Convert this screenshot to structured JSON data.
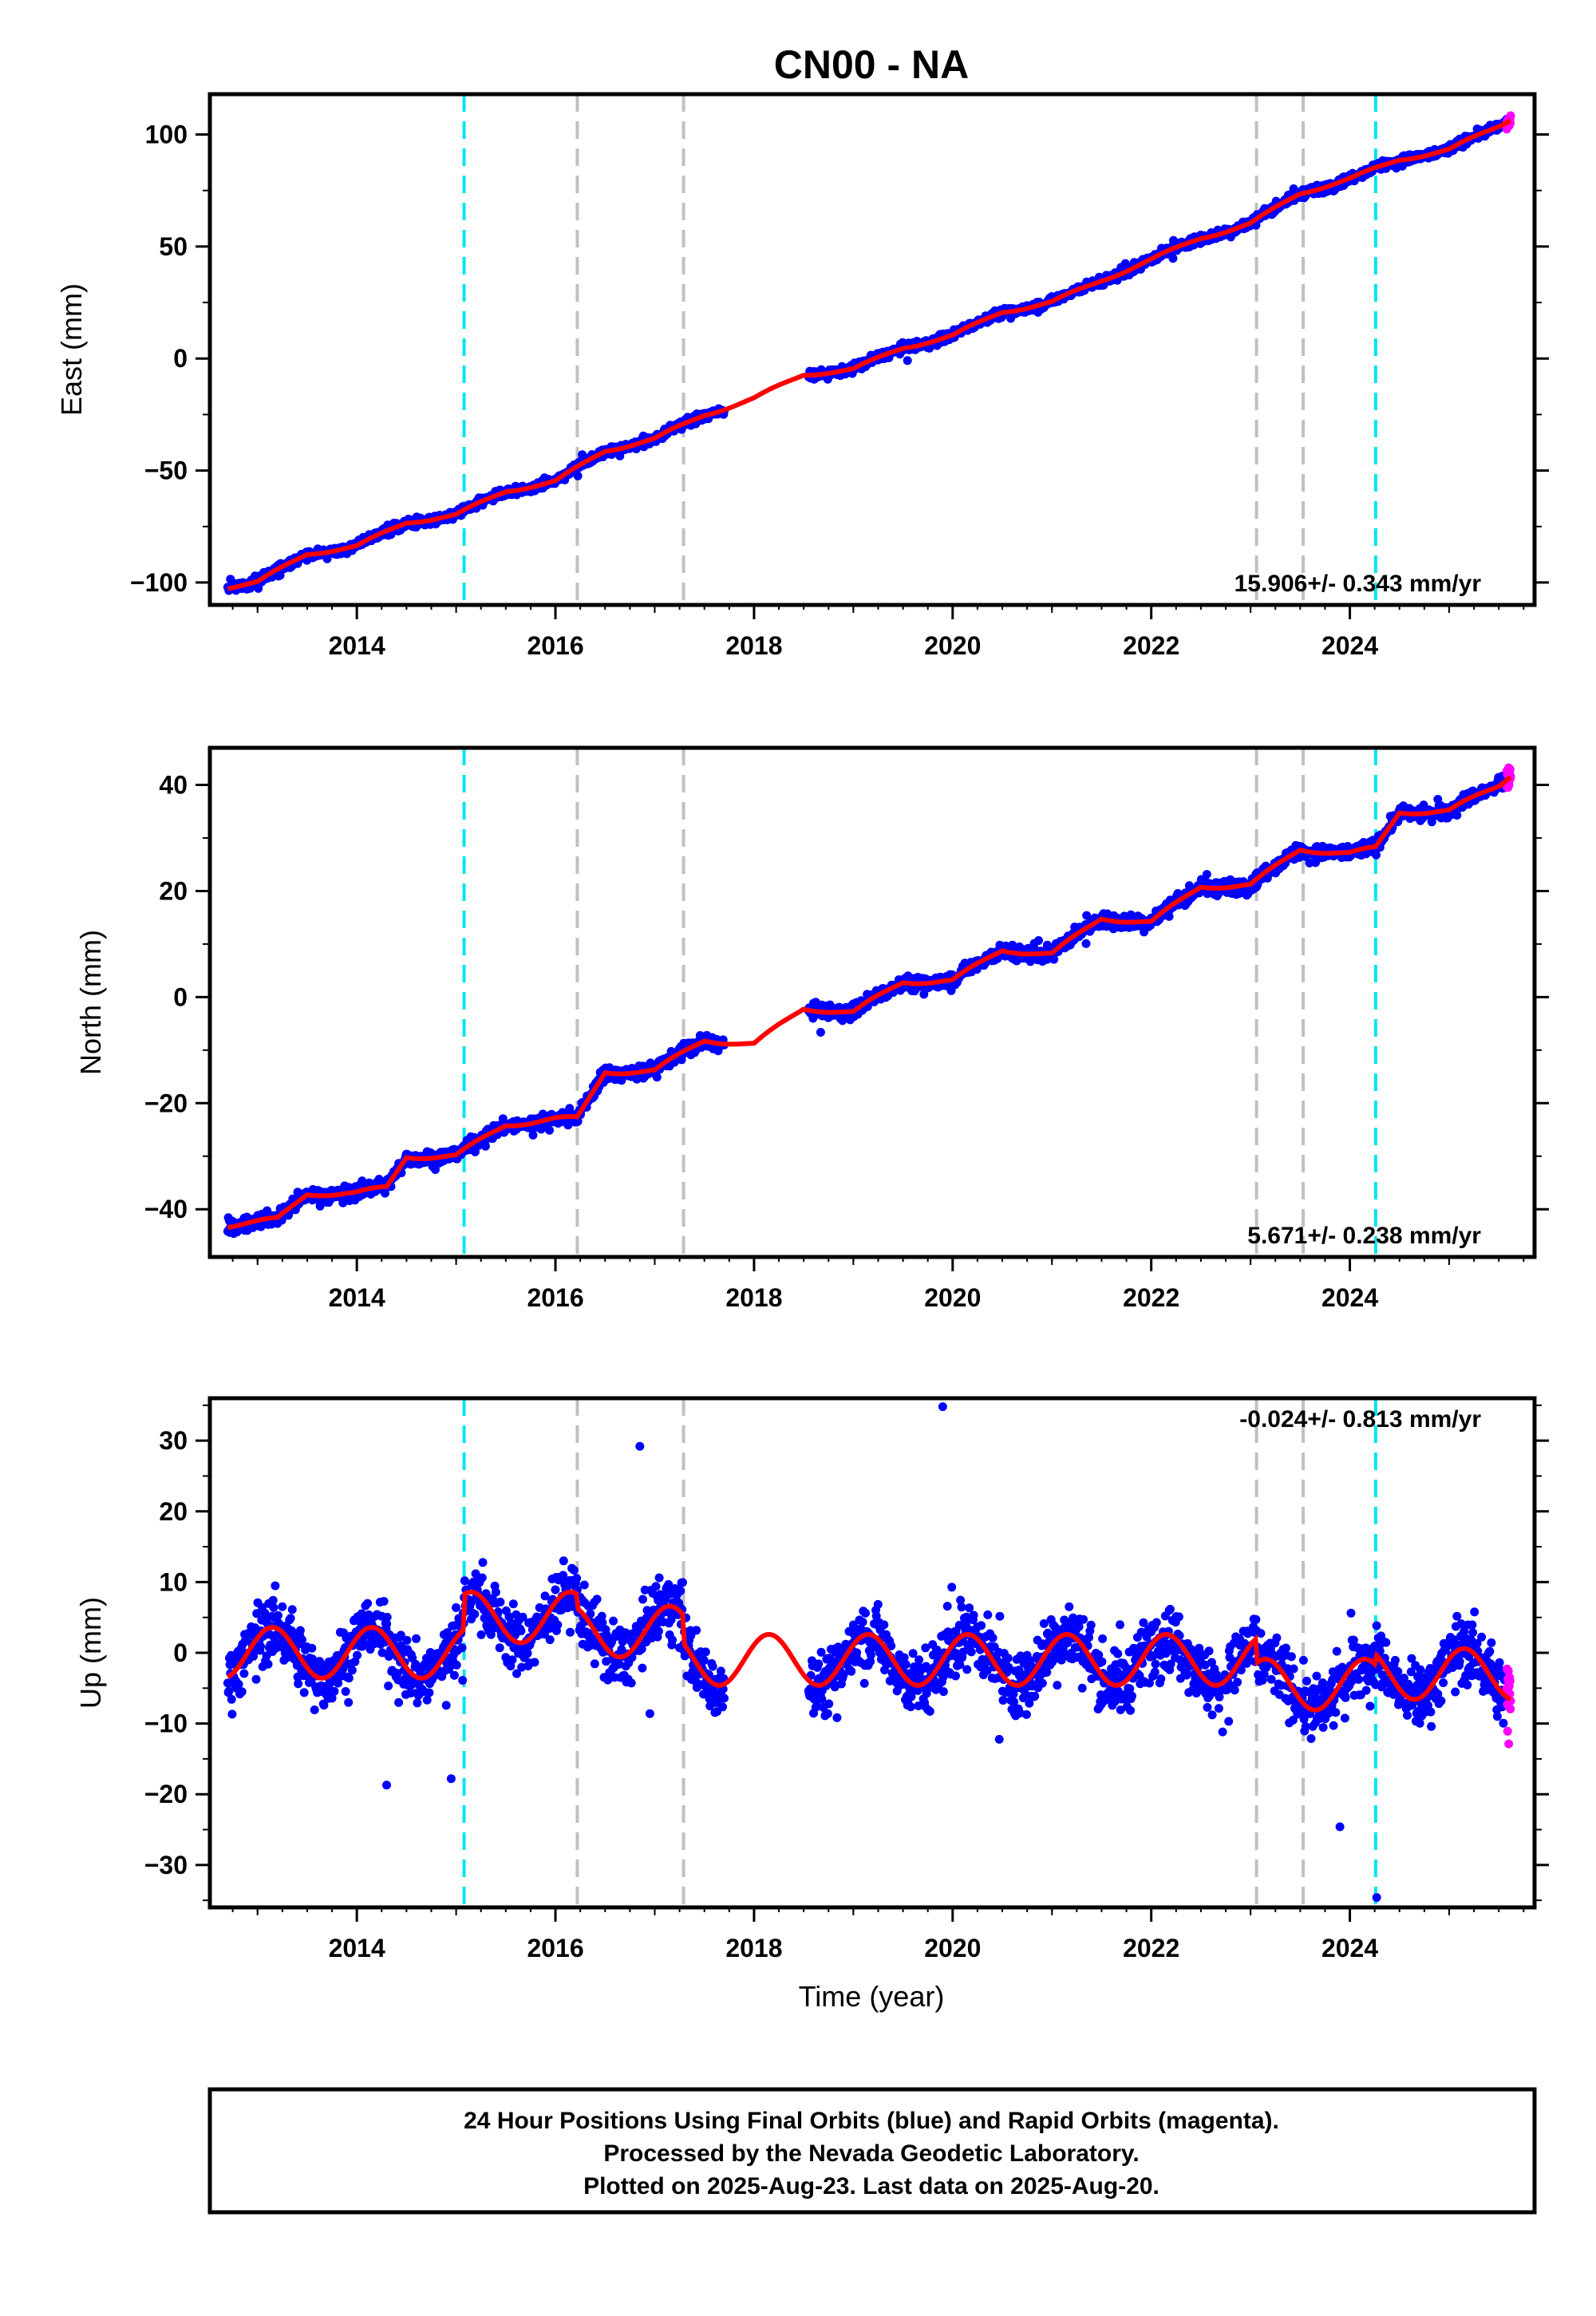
{
  "title": "CN00 - NA",
  "xlabel": "Time (year)",
  "footer": [
    "24 Hour Positions Using Final Orbits (blue) and Rapid Orbits (magenta).",
    "Processed by the Nevada Geodetic Laboratory.",
    "Plotted on 2025-Aug-23. Last data on 2025-Aug-20."
  ],
  "colors": {
    "final": "#0000ff",
    "rapid": "#ff00ff",
    "model": "#ff0000",
    "equipment_change": "#00e5ee",
    "other_event": "#c0c0c0"
  },
  "chart_data": [
    {
      "type": "scatter",
      "name": "east",
      "ylabel": "East (mm)",
      "ylim": [
        -110,
        118
      ],
      "xlim": [
        2012.52,
        2025.86
      ],
      "yticks": [
        -100,
        -50,
        0,
        50,
        100
      ],
      "ytick_labels": [
        "−100",
        "−50",
        "0",
        "50",
        "100"
      ],
      "xticks": [
        2014,
        2016,
        2018,
        2020,
        2022,
        2024
      ],
      "rate": "15.906+/- 0.343 mm/yr",
      "rate_value": 15.906,
      "rate_sigma": 0.343,
      "rate_position": "bottom-right",
      "equipment_change_epochs": [
        2015.08,
        2024.26
      ],
      "other_event_epochs": [
        2016.22,
        2017.29,
        2023.06,
        2023.53
      ],
      "model_trend": {
        "x": [
          2012.7,
          2013.0,
          2013.5,
          2014.0,
          2014.5,
          2015.0,
          2015.5,
          2016.0,
          2016.5,
          2017.0,
          2017.5,
          2018.0,
          2018.5,
          2019.0,
          2019.5,
          2020.0,
          2020.5,
          2021.0,
          2021.5,
          2022.0,
          2022.5,
          2023.0,
          2023.5,
          2024.0,
          2024.5,
          2025.0,
          2025.5,
          2025.62
        ],
        "y": [
          -102,
          -100,
          -87,
          -84,
          -73,
          -70,
          -59,
          -55,
          -41,
          -36,
          -25,
          -18,
          -7,
          -5,
          5,
          10,
          21,
          25,
          35,
          44,
          54,
          60,
          74,
          80,
          89,
          93,
          104,
          107
        ]
      },
      "final_orbit_spans": [
        [
          2012.7,
          2017.7
        ],
        [
          2018.55,
          2025.58
        ]
      ],
      "rapid_orbit_span": [
        2025.58,
        2025.62
      ],
      "seasonal_amplitude": 2.0,
      "daily_scatter": 1.8
    },
    {
      "type": "scatter",
      "name": "north",
      "ylabel": "North (mm)",
      "ylim": [
        -49,
        47
      ],
      "xlim": [
        2012.52,
        2025.86
      ],
      "yticks": [
        -40,
        -20,
        0,
        20,
        40
      ],
      "ytick_labels": [
        "−40",
        "−20",
        "0",
        "20",
        "40"
      ],
      "xticks": [
        2014,
        2016,
        2018,
        2020,
        2022,
        2024
      ],
      "rate": "5.671+/- 0.238 mm/yr",
      "rate_value": 5.671,
      "rate_sigma": 0.238,
      "rate_position": "bottom-right",
      "equipment_change_epochs": [
        2015.08,
        2024.26
      ],
      "other_event_epochs": [
        2016.22,
        2017.29,
        2023.06,
        2023.53
      ],
      "model_trend": {
        "x": [
          2012.7,
          2013.2,
          2013.5,
          2014.0,
          2014.3,
          2014.5,
          2015.0,
          2015.5,
          2016.0,
          2016.22,
          2016.5,
          2017.0,
          2017.5,
          2018.0,
          2018.5,
          2019.0,
          2019.5,
          2020.0,
          2020.5,
          2021.0,
          2021.5,
          2022.0,
          2022.5,
          2023.0,
          2023.5,
          2024.0,
          2024.26,
          2024.5,
          2025.0,
          2025.5,
          2025.62
        ],
        "y": [
          -43,
          -42,
          -37,
          -37,
          -36,
          -30,
          -30,
          -24,
          -23,
          -23,
          -14,
          -14,
          -8,
          -9,
          -2,
          -3,
          3,
          3,
          9,
          8,
          15,
          14,
          21,
          21,
          28,
          27,
          28,
          35,
          35,
          40,
          42
        ]
      },
      "final_orbit_spans": [
        [
          2012.7,
          2017.7
        ],
        [
          2018.55,
          2025.58
        ]
      ],
      "rapid_orbit_span": [
        2025.58,
        2025.62
      ],
      "seasonal_amplitude": 1.2,
      "daily_scatter": 1.2
    },
    {
      "type": "scatter",
      "name": "up",
      "ylabel": "Up (mm)",
      "ylim": [
        -36,
        36
      ],
      "xlim": [
        2012.52,
        2025.86
      ],
      "yticks": [
        -30,
        -20,
        -10,
        0,
        10,
        20,
        30
      ],
      "ytick_labels": [
        "−30",
        "−20",
        "−10",
        "0",
        "10",
        "20",
        "30"
      ],
      "xticks": [
        2014,
        2016,
        2018,
        2020,
        2022,
        2024
      ],
      "rate": "-0.024+/- 0.813 mm/yr",
      "rate_value": -0.024,
      "rate_sigma": 0.813,
      "rate_position": "top-right",
      "equipment_change_epochs": [
        2015.08,
        2024.26
      ],
      "other_event_epochs": [
        2016.22,
        2017.29,
        2023.06,
        2023.53
      ],
      "model_trend": {
        "x": [
          2012.7,
          2015.07,
          2015.09,
          2016.21,
          2016.23,
          2017.28,
          2017.3,
          2023.05,
          2023.07,
          2024.25,
          2024.27,
          2025.62
        ],
        "y": [
          0,
          0,
          5,
          5,
          3,
          3,
          -1,
          -1,
          -4.5,
          -4.5,
          -3,
          -3
        ]
      },
      "final_orbit_spans": [
        [
          2012.7,
          2017.7
        ],
        [
          2018.55,
          2025.58
        ]
      ],
      "rapid_orbit_span": [
        2025.58,
        2025.62
      ],
      "seasonal_amplitude": 3.6,
      "daily_scatter": 4.0,
      "outliers": [
        {
          "x": 2016.85,
          "y": 29.2
        },
        {
          "x": 2019.9,
          "y": 34.8
        },
        {
          "x": 2023.9,
          "y": -24.6
        },
        {
          "x": 2024.27,
          "y": -34.6
        },
        {
          "x": 2014.3,
          "y": -18.7
        },
        {
          "x": 2014.95,
          "y": -17.8
        }
      ]
    }
  ]
}
